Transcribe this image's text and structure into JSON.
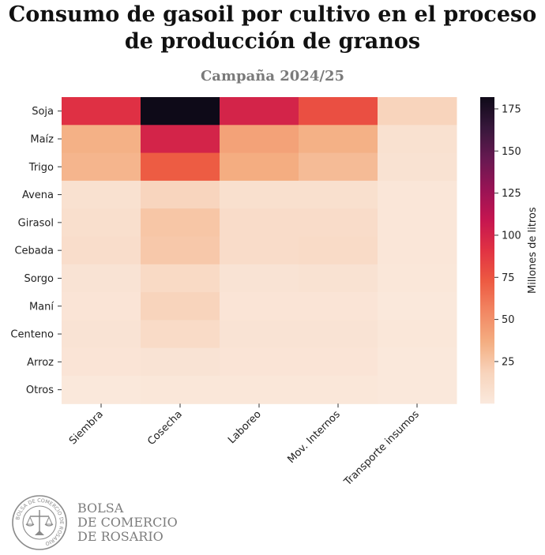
{
  "title_line1": "Consumo de gasoil por cultivo en el proceso",
  "title_line2": "de producción de granos",
  "subtitle": "Campaña 2024/25",
  "logo": {
    "line1": "BOLSA",
    "line2": "DE COMERCIO",
    "line3": "DE ROSARIO",
    "seal_text": "BOLSA DE COMERCIO DE ROSARIO"
  },
  "chart_data": {
    "type": "heatmap",
    "rows": [
      "Soja",
      "Maíz",
      "Trigo",
      "Avena",
      "Girasol",
      "Cebada",
      "Sorgo",
      "Maní",
      "Centeno",
      "Arroz",
      "Otros"
    ],
    "columns": [
      "Siembra",
      "Cosecha",
      "Laboreo",
      "Mov. Internos",
      "Transporte insumos"
    ],
    "values": [
      [
        92,
        182,
        100,
        78,
        18
      ],
      [
        35,
        100,
        42,
        35,
        7
      ],
      [
        33,
        72,
        37,
        30,
        6
      ],
      [
        7,
        17,
        8,
        8,
        3
      ],
      [
        9,
        25,
        11,
        11,
        3
      ],
      [
        10,
        24,
        11,
        12,
        3
      ],
      [
        5,
        13,
        5,
        6,
        2
      ],
      [
        4,
        18,
        4,
        4,
        1
      ],
      [
        5,
        12,
        5,
        5,
        2
      ],
      [
        4,
        5,
        4,
        4,
        1
      ],
      [
        1,
        2,
        2,
        2,
        1
      ]
    ],
    "colorbar": {
      "label": "Millones de litros",
      "min": 0,
      "max": 182,
      "ticks": [
        25,
        50,
        75,
        100,
        125,
        150,
        175
      ]
    },
    "colormap": "rocket_r"
  }
}
